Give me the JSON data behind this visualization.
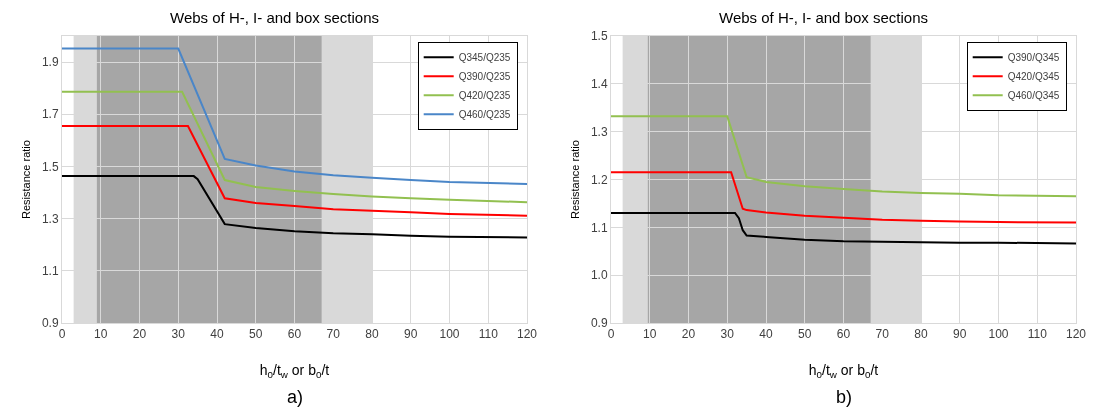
{
  "chart_data": [
    {
      "type": "line",
      "title": "Webs of H-, I- and box sections",
      "xlabel": "h$_{0}$/t$_{w}$ or b$_{0}$/t",
      "ylabel": "Resistance ratio",
      "annotations": [
        "a)"
      ],
      "xlim": [
        0,
        120
      ],
      "xticks": [
        0,
        10,
        20,
        30,
        40,
        50,
        60,
        70,
        80,
        90,
        100,
        110,
        120
      ],
      "ylim": [
        0.9,
        2.0
      ],
      "yticks": [
        0.9,
        1.1,
        1.3,
        1.5,
        1.7,
        1.9
      ],
      "grid": true,
      "legend": "top right",
      "marker": "none",
      "line_style": "solid",
      "bands": [
        {
          "axis": "x",
          "from": 3,
          "to": 80,
          "color": "#d9d9d9"
        },
        {
          "axis": "x",
          "from": 9,
          "to": 67,
          "color": "#a6a6a6"
        }
      ],
      "series": [
        {
          "name": "Q345/Q235",
          "color": "#000000",
          "x": [
            0,
            34,
            35,
            42,
            50,
            60,
            70,
            80,
            90,
            100,
            120
          ],
          "values": [
            1.463,
            1.463,
            1.451,
            1.279,
            1.264,
            1.252,
            1.244,
            1.24,
            1.234,
            1.231,
            1.228
          ]
        },
        {
          "name": "Q390/Q235",
          "color": "#ff0000",
          "x": [
            0,
            32.5,
            42,
            50,
            60,
            70,
            80,
            90,
            100,
            120
          ],
          "values": [
            1.655,
            1.655,
            1.378,
            1.36,
            1.348,
            1.336,
            1.33,
            1.324,
            1.318,
            1.311
          ]
        },
        {
          "name": "Q420/Q235",
          "color": "#92c050",
          "x": [
            0,
            31,
            42,
            50,
            60,
            70,
            80,
            90,
            100,
            120
          ],
          "values": [
            1.786,
            1.786,
            1.448,
            1.421,
            1.406,
            1.394,
            1.385,
            1.378,
            1.372,
            1.363
          ]
        },
        {
          "name": "Q460/Q235",
          "color": "#4a86c8",
          "x": [
            0,
            30,
            42,
            50,
            60,
            70,
            80,
            90,
            100,
            120
          ],
          "values": [
            1.952,
            1.952,
            1.529,
            1.504,
            1.481,
            1.466,
            1.457,
            1.448,
            1.44,
            1.433
          ]
        }
      ]
    },
    {
      "type": "line",
      "title": "Webs of H-, I- and box sections",
      "xlabel": "h$_{0}$/t$_{w}$ or b$_{0}$/t",
      "ylabel": "Resistance ratio",
      "annotations": [
        "b)"
      ],
      "xlim": [
        0,
        120
      ],
      "xticks": [
        0,
        10,
        20,
        30,
        40,
        50,
        60,
        70,
        80,
        90,
        100,
        110,
        120
      ],
      "ylim": [
        0.9,
        1.5
      ],
      "yticks": [
        0.9,
        {
          "value": 1,
          "label": "1.0"
        },
        1.1,
        1.2,
        1.3,
        1.4,
        1.5
      ],
      "grid": true,
      "legend": "top right",
      "marker": "none",
      "line_style": "solid",
      "bands": [
        {
          "axis": "x",
          "from": 3,
          "to": 80,
          "color": "#d9d9d9"
        },
        {
          "axis": "x",
          "from": 9.5,
          "to": 67,
          "color": "#a6a6a6"
        }
      ],
      "series": [
        {
          "name": "Q390/Q345",
          "color": "#000000",
          "x": [
            0,
            32,
            33,
            34,
            35,
            40,
            50,
            60,
            70,
            80,
            90,
            100,
            120
          ],
          "values": [
            1.13,
            1.13,
            1.119,
            1.094,
            1.083,
            1.08,
            1.074,
            1.071,
            1.07,
            1.069,
            1.068,
            1.068,
            1.066
          ]
        },
        {
          "name": "Q420/Q345",
          "color": "#ff0000",
          "x": [
            0,
            31,
            34,
            35,
            40,
            50,
            60,
            70,
            80,
            90,
            100,
            120
          ],
          "values": [
            1.215,
            1.215,
            1.139,
            1.136,
            1.131,
            1.124,
            1.12,
            1.116,
            1.114,
            1.112,
            1.111,
            1.11
          ]
        },
        {
          "name": "Q460/Q345",
          "color": "#92c050",
          "x": [
            0,
            30,
            35,
            40,
            50,
            60,
            70,
            80,
            90,
            100,
            120
          ],
          "values": [
            1.332,
            1.332,
            1.205,
            1.195,
            1.186,
            1.18,
            1.175,
            1.172,
            1.17,
            1.167,
            1.165
          ]
        }
      ]
    }
  ]
}
